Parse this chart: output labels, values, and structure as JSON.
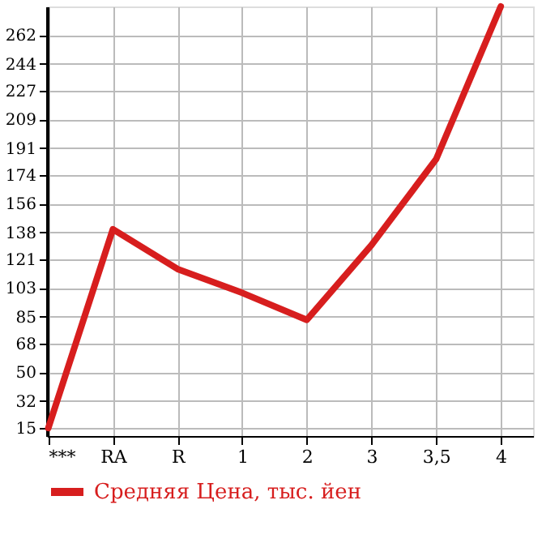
{
  "chart_data": {
    "type": "line",
    "categories": [
      "***",
      "RA",
      "R",
      "1",
      "2",
      "3",
      "3,5",
      "4"
    ],
    "series": [
      {
        "name": "Средняя Цена, тыс. йен",
        "color": "#d71e1e",
        "values": [
          15,
          140,
          115,
          100,
          83,
          130,
          184,
          280
        ]
      }
    ],
    "ylim": [
      10,
      280
    ],
    "yticks": [
      15,
      32,
      50,
      68,
      85,
      103,
      121,
      138,
      156,
      174,
      191,
      209,
      227,
      244,
      262
    ],
    "grid": true,
    "legend": "bottom",
    "marker": "none",
    "line_style": "solid"
  }
}
